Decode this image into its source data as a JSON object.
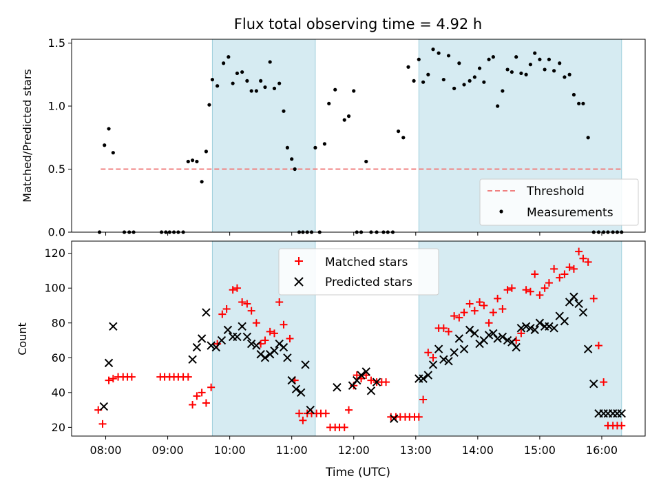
{
  "chart_data": [
    {
      "type": "scatter",
      "title": "Flux total observing time = 4.92 h",
      "xlabel": "",
      "ylabel": "Matched/Predicted stars",
      "xlim": [
        7.45,
        16.7
      ],
      "ylim": [
        0.0,
        1.53
      ],
      "yticks": [
        0.0,
        0.5,
        1.0,
        1.5
      ],
      "ytick_labels": [
        "0.0",
        "0.5",
        "1.0",
        "1.5"
      ],
      "shaded_intervals": [
        [
          9.72,
          11.38
        ],
        [
          13.05,
          16.32
        ]
      ],
      "threshold": {
        "value": 0.5,
        "x_range": [
          7.92,
          16.32
        ],
        "color": "#f08080",
        "label": "Threshold"
      },
      "legend": {
        "position": "lower-right",
        "entries": [
          "Threshold",
          "Measurements"
        ]
      },
      "series": [
        {
          "name": "Measurements",
          "marker": "dot",
          "color": "#000000",
          "x": [
            7.9,
            7.98,
            8.05,
            8.12,
            8.3,
            8.38,
            8.45,
            8.9,
            8.97,
            9.03,
            9.1,
            9.17,
            9.25,
            9.33,
            9.4,
            9.47,
            9.55,
            9.62,
            9.67,
            9.72,
            9.8,
            9.9,
            9.98,
            10.05,
            10.12,
            10.2,
            10.28,
            10.35,
            10.43,
            10.5,
            10.57,
            10.65,
            10.72,
            10.8,
            10.87,
            10.93,
            11.0,
            11.05,
            11.12,
            11.18,
            11.25,
            11.32,
            11.38,
            11.45,
            11.53,
            11.6,
            11.7,
            11.85,
            11.92,
            12.0,
            12.05,
            12.12,
            12.2,
            12.28,
            12.37,
            12.48,
            12.55,
            12.63,
            12.72,
            12.8,
            12.88,
            12.97,
            13.05,
            13.12,
            13.2,
            13.28,
            13.37,
            13.45,
            13.53,
            13.62,
            13.7,
            13.78,
            13.87,
            13.95,
            14.03,
            14.1,
            14.18,
            14.25,
            14.32,
            14.4,
            14.48,
            14.55,
            14.62,
            14.7,
            14.78,
            14.85,
            14.92,
            15.0,
            15.08,
            15.15,
            15.23,
            15.32,
            15.4,
            15.48,
            15.55,
            15.63,
            15.7,
            15.78,
            15.87,
            15.95,
            16.03,
            16.1,
            16.18,
            16.25,
            16.32
          ],
          "y": [
            0.0,
            0.69,
            0.82,
            0.63,
            0.0,
            0.0,
            0.0,
            0.0,
            0.0,
            0.0,
            0.0,
            0.0,
            0.0,
            0.56,
            0.57,
            0.56,
            0.4,
            0.64,
            1.01,
            1.21,
            1.16,
            1.34,
            1.39,
            1.18,
            1.26,
            1.27,
            1.2,
            1.12,
            1.12,
            1.2,
            1.15,
            1.35,
            1.14,
            1.18,
            0.96,
            0.67,
            0.58,
            0.5,
            0.0,
            0.0,
            0.0,
            0.0,
            0.67,
            0.0,
            0.7,
            1.02,
            1.13,
            0.89,
            0.92,
            1.12,
            0.0,
            0.0,
            0.56,
            0.0,
            0.0,
            0.0,
            0.0,
            0.0,
            0.8,
            0.75,
            1.31,
            1.2,
            1.37,
            1.19,
            1.25,
            1.45,
            1.42,
            1.21,
            1.4,
            1.14,
            1.34,
            1.17,
            1.2,
            1.23,
            1.3,
            1.19,
            1.37,
            1.39,
            1.0,
            1.12,
            1.29,
            1.27,
            1.39,
            1.26,
            1.25,
            1.33,
            1.42,
            1.37,
            1.29,
            1.37,
            1.28,
            1.34,
            1.23,
            1.25,
            1.09,
            1.02,
            1.02,
            0.75,
            0.0,
            0.0,
            0.0,
            0.0,
            0.0,
            0.0,
            0.0
          ]
        }
      ]
    },
    {
      "type": "scatter",
      "title": "",
      "xlabel": "Time (UTC)",
      "ylabel": "Count",
      "xlim": [
        7.45,
        16.7
      ],
      "ylim": [
        15,
        127
      ],
      "yticks": [
        20,
        40,
        60,
        80,
        100,
        120
      ],
      "ytick_labels": [
        "20",
        "40",
        "60",
        "80",
        "100",
        "120"
      ],
      "xticks": [
        8,
        9,
        10,
        11,
        12,
        13,
        14,
        15,
        16
      ],
      "xtick_labels": [
        "08:00",
        "09:00",
        "10:00",
        "11:00",
        "12:00",
        "13:00",
        "14:00",
        "15:00",
        "16:00"
      ],
      "shaded_intervals": [
        [
          9.72,
          11.38
        ],
        [
          13.05,
          16.32
        ]
      ],
      "legend": {
        "position": "top-center",
        "entries": [
          "Matched stars",
          "Predicted stars"
        ]
      },
      "series": [
        {
          "name": "Matched stars",
          "marker": "plus",
          "color": "#ff0000",
          "x": [
            7.88,
            7.95,
            8.05,
            8.12,
            8.2,
            8.28,
            8.35,
            8.42,
            8.88,
            8.95,
            9.03,
            9.1,
            9.17,
            9.25,
            9.33,
            9.4,
            9.47,
            9.55,
            9.62,
            9.7,
            9.8,
            9.88,
            9.95,
            10.05,
            10.12,
            10.2,
            10.28,
            10.35,
            10.43,
            10.5,
            10.57,
            10.65,
            10.72,
            10.8,
            10.87,
            10.97,
            11.05,
            11.12,
            11.18,
            11.25,
            11.32,
            11.4,
            11.47,
            11.55,
            11.62,
            11.7,
            11.77,
            11.85,
            11.92,
            12.0,
            12.05,
            12.12,
            12.2,
            12.28,
            12.37,
            12.45,
            12.52,
            12.6,
            12.68,
            12.75,
            12.83,
            12.9,
            12.98,
            13.05,
            13.12,
            13.2,
            13.28,
            13.37,
            13.45,
            13.53,
            13.62,
            13.7,
            13.78,
            13.87,
            13.95,
            14.03,
            14.1,
            14.18,
            14.25,
            14.32,
            14.4,
            14.48,
            14.55,
            14.62,
            14.7,
            14.78,
            14.85,
            14.92,
            15.0,
            15.08,
            15.15,
            15.23,
            15.32,
            15.4,
            15.48,
            15.55,
            15.63,
            15.7,
            15.78,
            15.87,
            15.95,
            16.03,
            16.1,
            16.18,
            16.25,
            16.32
          ],
          "y": [
            30,
            22,
            47,
            48,
            49,
            49,
            49,
            49,
            49,
            49,
            49,
            49,
            49,
            49,
            49,
            33,
            38,
            40,
            34,
            43,
            68,
            85,
            88,
            99,
            100,
            92,
            91,
            87,
            80,
            68,
            70,
            75,
            74,
            92,
            79,
            71,
            47,
            28,
            24,
            28,
            28,
            28,
            28,
            28,
            20,
            20,
            20,
            20,
            30,
            44,
            50,
            48,
            50,
            47,
            46,
            46,
            46,
            26,
            26,
            26,
            26,
            26,
            26,
            26,
            36,
            63,
            60,
            77,
            77,
            75,
            84,
            83,
            86,
            91,
            87,
            92,
            90,
            80,
            86,
            94,
            88,
            99,
            100,
            70,
            74,
            99,
            98,
            108,
            96,
            100,
            103,
            111,
            106,
            108,
            112,
            111,
            121,
            117,
            115,
            94,
            67,
            46,
            21,
            21,
            21,
            21
          ]
        },
        {
          "name": "Predicted stars",
          "marker": "x",
          "color": "#000000",
          "x": [
            7.97,
            8.05,
            8.12,
            9.4,
            9.47,
            9.55,
            9.62,
            9.7,
            9.78,
            9.87,
            9.97,
            10.05,
            10.12,
            10.2,
            10.28,
            10.35,
            10.43,
            10.5,
            10.57,
            10.65,
            10.72,
            10.8,
            10.87,
            10.93,
            11.0,
            11.07,
            11.15,
            11.22,
            11.3,
            11.73,
            11.98,
            12.05,
            12.12,
            12.2,
            12.28,
            12.37,
            12.65,
            13.05,
            13.12,
            13.2,
            13.28,
            13.37,
            13.45,
            13.53,
            13.62,
            13.7,
            13.78,
            13.87,
            13.95,
            14.03,
            14.1,
            14.18,
            14.25,
            14.32,
            14.4,
            14.48,
            14.55,
            14.62,
            14.7,
            14.78,
            14.85,
            14.92,
            15.0,
            15.08,
            15.15,
            15.23,
            15.32,
            15.4,
            15.48,
            15.55,
            15.63,
            15.7,
            15.78,
            15.87,
            15.95,
            16.03,
            16.1,
            16.18,
            16.25,
            16.32
          ],
          "y": [
            32,
            57,
            78,
            59,
            66,
            71,
            86,
            67,
            66,
            70,
            76,
            72,
            72,
            78,
            72,
            68,
            67,
            62,
            60,
            62,
            64,
            68,
            66,
            60,
            47,
            42,
            40,
            56,
            30,
            43,
            44,
            47,
            50,
            52,
            41,
            46,
            25,
            48,
            48,
            50,
            56,
            65,
            59,
            58,
            63,
            71,
            65,
            76,
            74,
            68,
            70,
            73,
            74,
            71,
            72,
            70,
            69,
            66,
            77,
            78,
            77,
            76,
            80,
            78,
            78,
            77,
            84,
            81,
            92,
            95,
            91,
            86,
            65,
            45,
            28,
            28,
            28,
            28,
            28,
            28
          ]
        }
      ]
    }
  ]
}
